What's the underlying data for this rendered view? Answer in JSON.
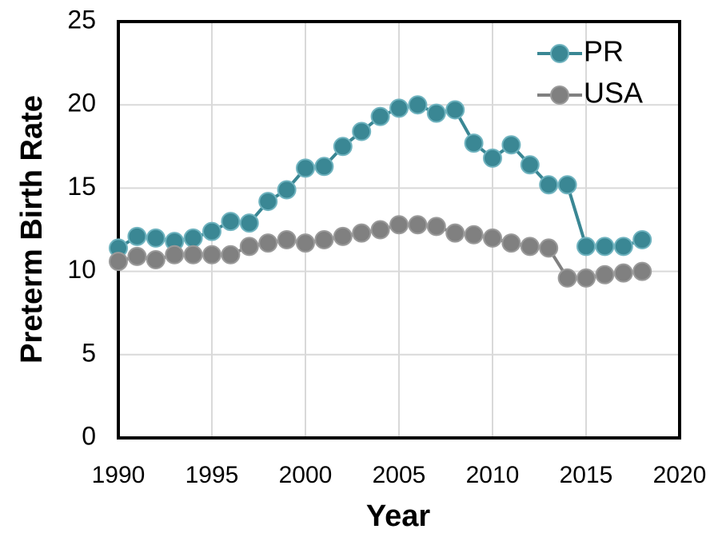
{
  "chart_data": {
    "type": "line",
    "xlabel": "Year",
    "ylabel": "Preterm Birth Rate",
    "x": [
      1990,
      1991,
      1992,
      1993,
      1994,
      1995,
      1996,
      1997,
      1998,
      1999,
      2000,
      2001,
      2002,
      2003,
      2004,
      2005,
      2006,
      2007,
      2008,
      2009,
      2010,
      2011,
      2012,
      2013,
      2014,
      2015,
      2016,
      2017,
      2018
    ],
    "series": [
      {
        "name": "PR",
        "color": "#3a8794",
        "values": [
          11.4,
          12.1,
          12.0,
          11.8,
          12.0,
          12.4,
          13.0,
          12.9,
          14.2,
          14.9,
          16.2,
          16.3,
          17.5,
          18.4,
          19.3,
          19.8,
          20.0,
          19.5,
          19.7,
          17.7,
          16.8,
          17.6,
          16.4,
          15.2,
          15.2,
          11.5,
          11.5,
          11.5,
          11.9
        ]
      },
      {
        "name": "USA",
        "color": "#808080",
        "values": [
          10.6,
          10.9,
          10.7,
          11.0,
          11.0,
          11.0,
          11.0,
          11.5,
          11.7,
          11.9,
          11.7,
          11.9,
          12.1,
          12.3,
          12.5,
          12.8,
          12.8,
          12.7,
          12.3,
          12.2,
          12.0,
          11.7,
          11.5,
          11.4,
          9.6,
          9.6,
          9.8,
          9.9,
          10.0
        ]
      }
    ],
    "xlim": [
      1990,
      2020
    ],
    "xticks": [
      1990,
      1995,
      2000,
      2005,
      2010,
      2015,
      2020
    ],
    "ylim": [
      0,
      25
    ],
    "yticks": [
      0,
      5,
      10,
      15,
      20,
      25
    ],
    "grid": true,
    "legend": "top-right"
  }
}
